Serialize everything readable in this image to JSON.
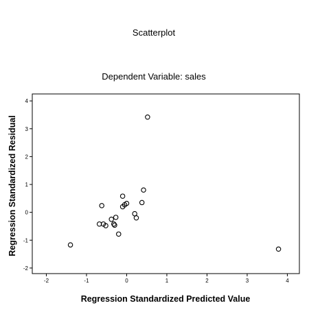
{
  "chart_data": {
    "type": "scatter",
    "title": "Scatterplot",
    "subtitle": "Dependent Variable: sales",
    "xlabel": "Regression Standardized Predicted Value",
    "ylabel": "Regression Standardized Residual",
    "xlim": [
      -2.35,
      4.3
    ],
    "ylim": [
      -2.2,
      4.25
    ],
    "x_ticks": [
      -2,
      -1,
      0,
      1,
      2,
      3,
      4
    ],
    "y_ticks": [
      4,
      3,
      2,
      1,
      0,
      -1,
      -2
    ],
    "x_tick_labels": [
      "-2",
      "-1",
      "0",
      "1",
      "2",
      "3",
      "4"
    ],
    "y_tick_labels": [
      "4",
      "3",
      "2",
      "1",
      "0",
      "-1",
      "-2"
    ],
    "grid": false,
    "marker": "open-circle",
    "series": [
      {
        "x": [
          0.52,
          3.78,
          -1.4,
          -0.62,
          -0.68,
          -0.58,
          -0.52,
          -0.38,
          -0.3,
          -0.32,
          -0.27,
          -0.2,
          -0.1,
          -0.1,
          -0.05,
          0.0,
          0.2,
          0.24,
          0.38,
          0.42
        ],
        "y": [
          3.42,
          -1.32,
          -1.17,
          0.24,
          -0.42,
          -0.42,
          -0.48,
          -0.25,
          -0.46,
          -0.42,
          -0.18,
          -0.78,
          0.58,
          0.2,
          0.27,
          0.32,
          -0.05,
          -0.2,
          0.35,
          0.8
        ]
      }
    ]
  }
}
